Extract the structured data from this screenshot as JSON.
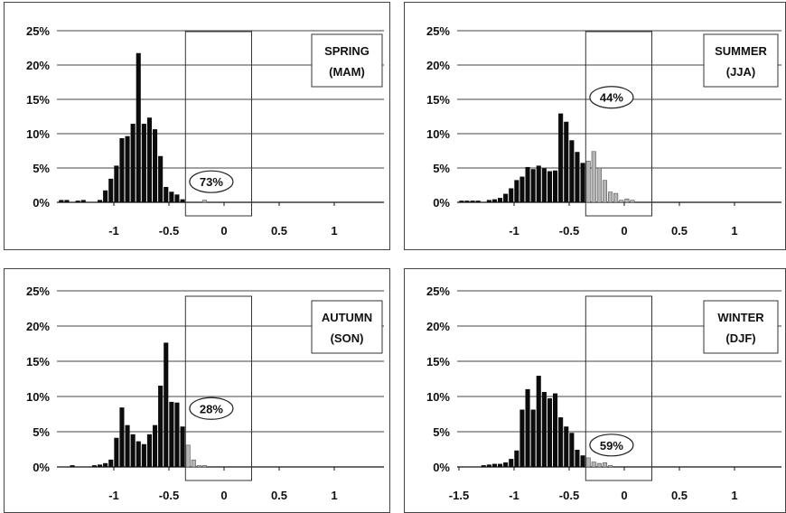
{
  "chart_data": [
    {
      "type": "bar",
      "title_lines": [
        "SPRING",
        "(MAM)"
      ],
      "ytick_labels": [
        "0%",
        "5%",
        "10%",
        "15%",
        "20%",
        "25%"
      ],
      "xtick_labels": [
        "-1",
        "-0.5",
        "0",
        "0.5",
        "1"
      ],
      "xtick_values": [
        -1,
        -0.5,
        0,
        0.5,
        1
      ],
      "ylim": [
        0,
        25
      ],
      "bin_start": -1.5,
      "bin_width": 0.05,
      "box_range": [
        -0.35,
        0.25
      ],
      "annotation": "73%",
      "annotation_y": 3,
      "values": [
        0.3,
        0.3,
        0.0,
        0.2,
        0.3,
        0.0,
        0.0,
        0.3,
        1.7,
        3.4,
        5.3,
        9.3,
        9.6,
        11.4,
        21.7,
        11.4,
        12.3,
        10.6,
        6.7,
        2.2,
        1.5,
        1.1,
        0.4,
        0.0,
        0.0,
        0.0,
        0.3,
        0.0,
        0.0
      ]
    },
    {
      "type": "bar",
      "title_lines": [
        "SUMMER",
        "(JJA)"
      ],
      "ytick_labels": [
        "0%",
        "5%",
        "10%",
        "15%",
        "20%",
        "25%"
      ],
      "xtick_labels": [
        "-1",
        "-0.5",
        "0",
        "0.5",
        "1"
      ],
      "xtick_values": [
        -1,
        -0.5,
        0,
        0.5,
        1
      ],
      "ylim": [
        0,
        25
      ],
      "bin_start": -1.5,
      "bin_width": 0.05,
      "box_range": [
        -0.35,
        0.25
      ],
      "annotation": "44%",
      "annotation_y": 15.3,
      "values": [
        0.2,
        0.2,
        0.2,
        0.2,
        0.0,
        0.3,
        0.4,
        0.6,
        1.2,
        2.0,
        3.2,
        3.7,
        5.1,
        4.8,
        5.3,
        4.9,
        4.5,
        4.6,
        12.9,
        11.7,
        9.0,
        7.3,
        5.7,
        6.0,
        7.4,
        5.0,
        3.2,
        1.5,
        1.3,
        0.3,
        0.5,
        0.3
      ]
    },
    {
      "type": "bar",
      "title_lines": [
        "AUTUMN",
        "(SON)"
      ],
      "ytick_labels": [
        "0%",
        "5%",
        "10%",
        "15%",
        "20%",
        "25%"
      ],
      "xtick_labels": [
        "-1",
        "-0.5",
        "0",
        "0.5",
        "1"
      ],
      "xtick_values": [
        -1,
        -0.5,
        0,
        0.5,
        1
      ],
      "ylim": [
        0,
        25
      ],
      "bin_start": -1.5,
      "bin_width": 0.05,
      "box_range": [
        -0.35,
        0.25
      ],
      "annotation": "28%",
      "annotation_y": 8.3,
      "values": [
        0.0,
        0.0,
        0.2,
        0.0,
        0.0,
        0.0,
        0.2,
        0.3,
        0.5,
        1.0,
        4.1,
        8.4,
        5.9,
        4.6,
        3.6,
        3.2,
        4.6,
        5.9,
        11.5,
        17.6,
        9.2,
        9.1,
        5.7,
        3.1,
        1.0,
        0.2,
        0.2,
        0.0
      ]
    },
    {
      "type": "bar",
      "title_lines": [
        "WINTER",
        "(DJF)"
      ],
      "ytick_labels": [
        "0%",
        "5%",
        "10%",
        "15%",
        "20%",
        "25%"
      ],
      "xtick_labels": [
        "-1.5",
        "-1",
        "-0.5",
        "0",
        "0.5",
        "1"
      ],
      "xtick_values": [
        -1.5,
        -1,
        -0.5,
        0,
        0.5,
        1
      ],
      "ylim": [
        0,
        25
      ],
      "bin_start": -1.5,
      "bin_width": 0.05,
      "box_range": [
        -0.35,
        0.25
      ],
      "annotation": "59%",
      "annotation_y": 3.1,
      "values": [
        0.0,
        0.0,
        0.0,
        0.0,
        0.2,
        0.3,
        0.4,
        0.4,
        0.6,
        1.1,
        2.3,
        8.1,
        11.0,
        8.1,
        12.9,
        10.6,
        9.7,
        10.4,
        7.0,
        5.7,
        4.8,
        2.4,
        1.6,
        1.3,
        0.7,
        0.5,
        0.6,
        0.2,
        0.0,
        0.0
      ]
    }
  ]
}
